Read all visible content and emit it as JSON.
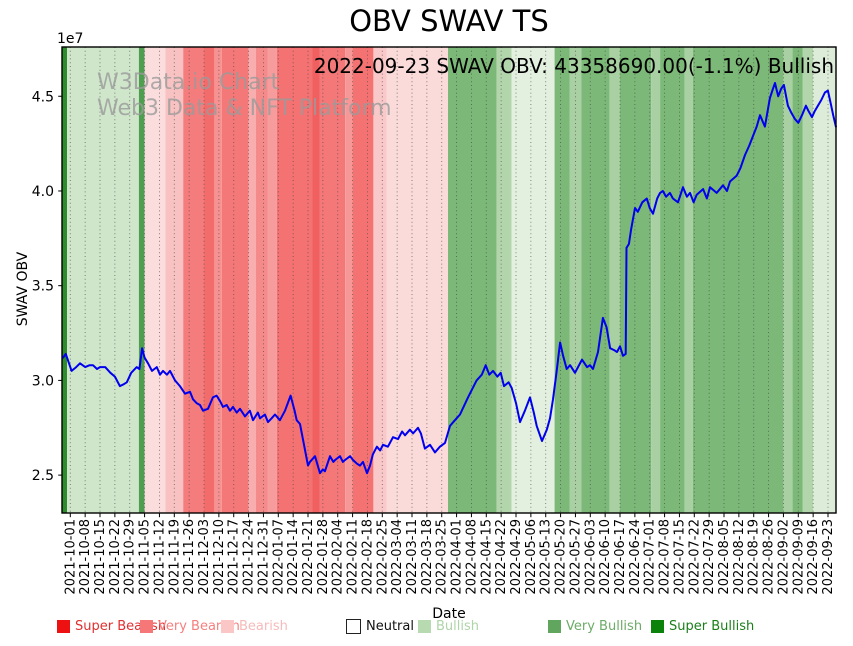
{
  "title": "OBV SWAV TS",
  "annotation": {
    "text": "2022-09-23 SWAV OBV: 43358690.00(-1.1%) Bullish"
  },
  "watermark": {
    "line1": "W3Data.io Chart",
    "line2": "Web3 Data & NFT Platform"
  },
  "axes": {
    "ylabel": "SWAV OBV",
    "xlabel": "Date",
    "offset_text": "1e7",
    "yticks": [
      2.5,
      3.0,
      3.5,
      4.0,
      4.5
    ]
  },
  "legend": {
    "items": [
      {
        "label": "Super Bearish",
        "color": "#ee1111",
        "text_color": "#e03030",
        "border": "none"
      },
      {
        "label": "Very Bearish",
        "color": "#f57777",
        "text_color": "#f57f7f",
        "border": "none"
      },
      {
        "label": "Bearish",
        "color": "#fac6c6",
        "text_color": "#f6baba",
        "border": "none"
      },
      {
        "label": "Neutral",
        "color": "#ffffff",
        "text_color": "#111111",
        "border": "1px solid #222"
      },
      {
        "label": "Bullish",
        "color": "#b7dab1",
        "text_color": "#afd4a9",
        "border": "none"
      },
      {
        "label": "Very Bullish",
        "color": "#61a65e",
        "text_color": "#6dab68",
        "border": "none"
      },
      {
        "label": "Super Bullish",
        "color": "#0b830b",
        "text_color": "#1b7e1b",
        "border": "none"
      }
    ]
  },
  "chart_data": {
    "type": "line",
    "title": "OBV SWAV TS",
    "xlabel": "Date",
    "ylabel": "SWAV OBV",
    "unit_multiplier": 10000000,
    "ylim": [
      2.3,
      4.76
    ],
    "yticks": [
      2.5,
      3.0,
      3.5,
      4.0,
      4.5
    ],
    "grid": "vertical-dotted-weekly",
    "legend_position": "bottom-row",
    "last_point": {
      "date": "2022-09-23",
      "value": "43358690.00",
      "change_pct": "-1.1%",
      "signal": "Bullish"
    },
    "x_tick_dates": [
      "2021-10-01",
      "2021-10-08",
      "2021-10-15",
      "2021-10-22",
      "2021-10-29",
      "2021-11-05",
      "2021-11-12",
      "2021-11-19",
      "2021-11-26",
      "2021-12-03",
      "2021-12-10",
      "2021-12-17",
      "2021-12-24",
      "2021-12-31",
      "2022-01-07",
      "2022-01-14",
      "2022-01-21",
      "2022-01-28",
      "2022-02-04",
      "2022-02-11",
      "2022-02-18",
      "2022-02-25",
      "2022-03-04",
      "2022-03-11",
      "2022-03-18",
      "2022-03-25",
      "2022-04-01",
      "2022-04-08",
      "2022-04-15",
      "2022-04-22",
      "2022-04-29",
      "2022-05-06",
      "2022-05-13",
      "2022-05-20",
      "2022-05-27",
      "2022-06-03",
      "2022-06-10",
      "2022-06-17",
      "2022-06-24",
      "2022-07-01",
      "2022-07-08",
      "2022-07-15",
      "2022-07-22",
      "2022-07-29",
      "2022-08-05",
      "2022-08-12",
      "2022-08-19",
      "2022-08-26",
      "2022-09-02",
      "2022-09-09",
      "2022-09-16",
      "2022-09-23"
    ],
    "bands": [
      {
        "from_week": -0.56,
        "to_week": -0.22,
        "sentiment": "super_bullish",
        "color": "#2e8b2e"
      },
      {
        "from_week": -0.22,
        "to_week": 4.62,
        "sentiment": "bullish",
        "color": "#cfe6ca"
      },
      {
        "from_week": 4.62,
        "to_week": 5.0,
        "sentiment": "very_bullish",
        "color": "#4f9e4f"
      },
      {
        "from_week": 5.0,
        "to_week": 6.4,
        "sentiment": "bearish_weak",
        "color": "#fcdddd"
      },
      {
        "from_week": 6.4,
        "to_week": 7.6,
        "sentiment": "bearish",
        "color": "#f8c2c2"
      },
      {
        "from_week": 7.6,
        "to_week": 9.0,
        "sentiment": "very_bearish",
        "color": "#f47c7c"
      },
      {
        "from_week": 9.0,
        "to_week": 9.7,
        "sentiment": "very_bearish_strong",
        "color": "#f26c6c"
      },
      {
        "from_week": 9.7,
        "to_week": 10.2,
        "sentiment": "very_bearish_light",
        "color": "#f69292"
      },
      {
        "from_week": 10.2,
        "to_week": 12.0,
        "sentiment": "very_bearish",
        "color": "#f47878"
      },
      {
        "from_week": 12.0,
        "to_week": 12.5,
        "sentiment": "bearish",
        "color": "#f8aeae"
      },
      {
        "from_week": 12.5,
        "to_week": 13.3,
        "sentiment": "very_bearish_light",
        "color": "#f58a8a"
      },
      {
        "from_week": 13.3,
        "to_week": 13.9,
        "sentiment": "very_bearish_light",
        "color": "#f69c9c"
      },
      {
        "from_week": 13.9,
        "to_week": 16.3,
        "sentiment": "very_bearish",
        "color": "#f47272"
      },
      {
        "from_week": 16.3,
        "to_week": 16.8,
        "sentiment": "very_bearish_strong",
        "color": "#f16060"
      },
      {
        "from_week": 16.8,
        "to_week": 18.5,
        "sentiment": "very_bearish",
        "color": "#f47878"
      },
      {
        "from_week": 18.5,
        "to_week": 19.0,
        "sentiment": "very_bearish_light",
        "color": "#f69898"
      },
      {
        "from_week": 19.0,
        "to_week": 20.4,
        "sentiment": "very_bearish",
        "color": "#f47272"
      },
      {
        "from_week": 20.4,
        "to_week": 21.3,
        "sentiment": "bearish",
        "color": "#f9c8c8"
      },
      {
        "from_week": 21.3,
        "to_week": 25.42,
        "sentiment": "bearish_weak",
        "color": "#fbdada"
      },
      {
        "from_week": 25.42,
        "to_week": 28.7,
        "sentiment": "very_bullish",
        "color": "#7cb877"
      },
      {
        "from_week": 28.7,
        "to_week": 29.7,
        "sentiment": "bullish",
        "color": "#b2d5ab"
      },
      {
        "from_week": 29.7,
        "to_week": 32.6,
        "sentiment": "bullish_weak",
        "color": "#e3f0df"
      },
      {
        "from_week": 32.6,
        "to_week": 33.6,
        "sentiment": "very_bullish",
        "color": "#7cb877"
      },
      {
        "from_week": 33.6,
        "to_week": 34.4,
        "sentiment": "bullish",
        "color": "#a9d0a2"
      },
      {
        "from_week": 34.4,
        "to_week": 36.3,
        "sentiment": "very_bullish",
        "color": "#7cb877"
      },
      {
        "from_week": 36.3,
        "to_week": 37.0,
        "sentiment": "bullish",
        "color": "#a9d0a2"
      },
      {
        "from_week": 37.0,
        "to_week": 39.1,
        "sentiment": "very_bullish",
        "color": "#7cb877"
      },
      {
        "from_week": 39.1,
        "to_week": 39.7,
        "sentiment": "bullish",
        "color": "#a9d0a2"
      },
      {
        "from_week": 39.7,
        "to_week": 41.35,
        "sentiment": "very_bullish",
        "color": "#7cb877"
      },
      {
        "from_week": 41.35,
        "to_week": 41.9,
        "sentiment": "bullish",
        "color": "#a9d0a2"
      },
      {
        "from_week": 41.9,
        "to_week": 48.0,
        "sentiment": "very_bullish",
        "color": "#7cb877"
      },
      {
        "from_week": 48.0,
        "to_week": 48.6,
        "sentiment": "bullish",
        "color": "#a9d0a2"
      },
      {
        "from_week": 48.6,
        "to_week": 49.3,
        "sentiment": "very_bullish",
        "color": "#7cb877"
      },
      {
        "from_week": 49.3,
        "to_week": 50.0,
        "sentiment": "bullish",
        "color": "#b2d5ab"
      },
      {
        "from_week": 50.0,
        "to_week": 51.53,
        "sentiment": "bullish_weak",
        "color": "#ddecd9"
      }
    ],
    "series": [
      {
        "name": "SWAV OBV",
        "color": "#0000ee",
        "points": [
          [
            -0.49,
            3.12
          ],
          [
            -0.3,
            3.14
          ],
          [
            0.09,
            3.05
          ],
          [
            0.4,
            3.07
          ],
          [
            0.65,
            3.09
          ],
          [
            1.0,
            3.07
          ],
          [
            1.3,
            3.08
          ],
          [
            1.53,
            3.08
          ],
          [
            1.8,
            3.06
          ],
          [
            2.0,
            3.07
          ],
          [
            2.35,
            3.07
          ],
          [
            2.7,
            3.04
          ],
          [
            3.0,
            3.02
          ],
          [
            3.34,
            2.97
          ],
          [
            3.6,
            2.98
          ],
          [
            3.8,
            2.99
          ],
          [
            4.1,
            3.04
          ],
          [
            4.47,
            3.07
          ],
          [
            4.65,
            3.06
          ],
          [
            4.83,
            3.17
          ],
          [
            5.0,
            3.12
          ],
          [
            5.23,
            3.09
          ],
          [
            5.5,
            3.05
          ],
          [
            5.82,
            3.07
          ],
          [
            6.04,
            3.03
          ],
          [
            6.24,
            3.05
          ],
          [
            6.5,
            3.03
          ],
          [
            6.71,
            3.05
          ],
          [
            7.05,
            3.0
          ],
          [
            7.38,
            2.97
          ],
          [
            7.72,
            2.93
          ],
          [
            8.06,
            2.94
          ],
          [
            8.26,
            2.9
          ],
          [
            8.5,
            2.88
          ],
          [
            8.73,
            2.87
          ],
          [
            8.93,
            2.84
          ],
          [
            9.27,
            2.85
          ],
          [
            9.6,
            2.91
          ],
          [
            9.85,
            2.92
          ],
          [
            10.08,
            2.89
          ],
          [
            10.28,
            2.86
          ],
          [
            10.53,
            2.87
          ],
          [
            10.75,
            2.84
          ],
          [
            10.95,
            2.86
          ],
          [
            11.2,
            2.83
          ],
          [
            11.42,
            2.85
          ],
          [
            11.76,
            2.81
          ],
          [
            12.09,
            2.84
          ],
          [
            12.3,
            2.79
          ],
          [
            12.63,
            2.83
          ],
          [
            12.77,
            2.8
          ],
          [
            13.1,
            2.82
          ],
          [
            13.31,
            2.78
          ],
          [
            13.55,
            2.8
          ],
          [
            13.78,
            2.82
          ],
          [
            14.11,
            2.79
          ],
          [
            14.45,
            2.84
          ],
          [
            14.83,
            2.92
          ],
          [
            15.1,
            2.84
          ],
          [
            15.24,
            2.79
          ],
          [
            15.46,
            2.77
          ],
          [
            16.0,
            2.55
          ],
          [
            16.13,
            2.57
          ],
          [
            16.47,
            2.6
          ],
          [
            16.81,
            2.51
          ],
          [
            17.0,
            2.53
          ],
          [
            17.14,
            2.52
          ],
          [
            17.48,
            2.6
          ],
          [
            17.7,
            2.57
          ],
          [
            17.82,
            2.58
          ],
          [
            18.15,
            2.6
          ],
          [
            18.35,
            2.57
          ],
          [
            18.49,
            2.58
          ],
          [
            18.83,
            2.6
          ],
          [
            19.03,
            2.58
          ],
          [
            19.3,
            2.56
          ],
          [
            19.5,
            2.55
          ],
          [
            19.7,
            2.57
          ],
          [
            19.97,
            2.51
          ],
          [
            20.17,
            2.55
          ],
          [
            20.37,
            2.61
          ],
          [
            20.64,
            2.65
          ],
          [
            20.85,
            2.63
          ],
          [
            21.05,
            2.66
          ],
          [
            21.38,
            2.65
          ],
          [
            21.72,
            2.7
          ],
          [
            22.06,
            2.69
          ],
          [
            22.33,
            2.73
          ],
          [
            22.53,
            2.71
          ],
          [
            22.86,
            2.74
          ],
          [
            23.07,
            2.72
          ],
          [
            23.4,
            2.75
          ],
          [
            23.6,
            2.72
          ],
          [
            23.87,
            2.64
          ],
          [
            24.21,
            2.66
          ],
          [
            24.55,
            2.62
          ],
          [
            24.88,
            2.65
          ],
          [
            25.22,
            2.67
          ],
          [
            25.56,
            2.76
          ],
          [
            25.89,
            2.79
          ],
          [
            26.23,
            2.82
          ],
          [
            26.77,
            2.91
          ],
          [
            27.35,
            3.0
          ],
          [
            27.7,
            3.03
          ],
          [
            27.96,
            3.08
          ],
          [
            28.2,
            3.03
          ],
          [
            28.45,
            3.05
          ],
          [
            28.75,
            3.02
          ],
          [
            28.97,
            3.04
          ],
          [
            29.19,
            2.97
          ],
          [
            29.5,
            2.99
          ],
          [
            29.71,
            2.96
          ],
          [
            30.0,
            2.88
          ],
          [
            30.27,
            2.78
          ],
          [
            30.6,
            2.84
          ],
          [
            30.94,
            2.91
          ],
          [
            31.2,
            2.83
          ],
          [
            31.39,
            2.76
          ],
          [
            31.75,
            2.68
          ],
          [
            32.07,
            2.74
          ],
          [
            32.29,
            2.8
          ],
          [
            32.49,
            2.9
          ],
          [
            32.74,
            3.05
          ],
          [
            32.97,
            3.2
          ],
          [
            33.17,
            3.13
          ],
          [
            33.41,
            3.06
          ],
          [
            33.64,
            3.08
          ],
          [
            33.97,
            3.04
          ],
          [
            34.17,
            3.07
          ],
          [
            34.44,
            3.11
          ],
          [
            34.78,
            3.07
          ],
          [
            34.98,
            3.08
          ],
          [
            35.18,
            3.06
          ],
          [
            35.52,
            3.15
          ],
          [
            35.85,
            3.33
          ],
          [
            36.1,
            3.28
          ],
          [
            36.33,
            3.17
          ],
          [
            36.6,
            3.16
          ],
          [
            36.8,
            3.15
          ],
          [
            37.0,
            3.18
          ],
          [
            37.2,
            3.13
          ],
          [
            37.38,
            3.14
          ],
          [
            37.44,
            3.7
          ],
          [
            37.6,
            3.72
          ],
          [
            37.75,
            3.8
          ],
          [
            38.01,
            3.91
          ],
          [
            38.2,
            3.89
          ],
          [
            38.5,
            3.94
          ],
          [
            38.8,
            3.96
          ],
          [
            39.0,
            3.91
          ],
          [
            39.22,
            3.88
          ],
          [
            39.5,
            3.96
          ],
          [
            39.69,
            3.99
          ],
          [
            39.89,
            4.0
          ],
          [
            40.1,
            3.97
          ],
          [
            40.36,
            3.99
          ],
          [
            40.56,
            3.96
          ],
          [
            40.9,
            3.94
          ],
          [
            41.24,
            4.02
          ],
          [
            41.5,
            3.97
          ],
          [
            41.71,
            3.99
          ],
          [
            41.95,
            3.94
          ],
          [
            42.16,
            3.98
          ],
          [
            42.59,
            4.01
          ],
          [
            42.85,
            3.96
          ],
          [
            43.06,
            4.02
          ],
          [
            43.51,
            3.99
          ],
          [
            43.93,
            4.03
          ],
          [
            44.2,
            4.0
          ],
          [
            44.4,
            4.05
          ],
          [
            44.85,
            4.08
          ],
          [
            45.1,
            4.12
          ],
          [
            45.41,
            4.19
          ],
          [
            45.7,
            4.24
          ],
          [
            45.95,
            4.29
          ],
          [
            46.2,
            4.34
          ],
          [
            46.42,
            4.4
          ],
          [
            46.75,
            4.34
          ],
          [
            47.09,
            4.49
          ],
          [
            47.3,
            4.54
          ],
          [
            47.43,
            4.57
          ],
          [
            47.65,
            4.5
          ],
          [
            47.85,
            4.54
          ],
          [
            48.03,
            4.56
          ],
          [
            48.3,
            4.45
          ],
          [
            48.55,
            4.41
          ],
          [
            48.77,
            4.38
          ],
          [
            49.0,
            4.36
          ],
          [
            49.25,
            4.4
          ],
          [
            49.51,
            4.45
          ],
          [
            49.7,
            4.42
          ],
          [
            49.92,
            4.39
          ],
          [
            50.1,
            4.42
          ],
          [
            50.32,
            4.45
          ],
          [
            50.55,
            4.48
          ],
          [
            50.79,
            4.52
          ],
          [
            50.99,
            4.53
          ],
          [
            51.19,
            4.46
          ],
          [
            51.35,
            4.4
          ],
          [
            51.53,
            4.34
          ]
        ]
      }
    ]
  }
}
